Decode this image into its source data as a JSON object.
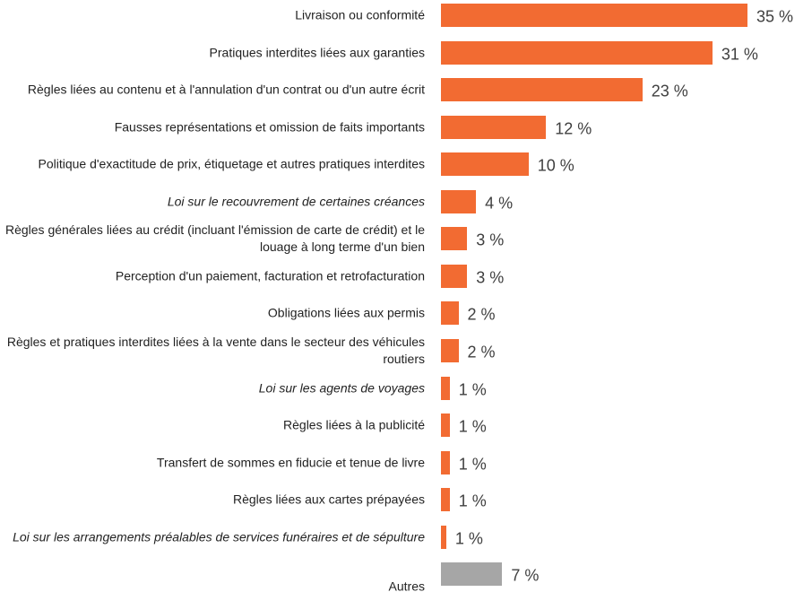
{
  "chart_data": {
    "type": "bar",
    "orientation": "horizontal",
    "categories": [
      "Livraison ou conformité",
      "Pratiques interdites liées aux garanties",
      "Règles liées au contenu et à l'annulation d'un contrat ou d'un autre écrit",
      "Fausses représentations et omission de faits importants",
      "Politique d'exactitude de prix, étiquetage et autres pratiques interdites",
      "Loi sur le recouvrement de certaines créances",
      "Règles générales liées au crédit (incluant l'émission de carte de crédit) et le louage à long terme d'un bien",
      "Perception d'un paiement, facturation et retrofacturation",
      "Obligations liées aux permis",
      "Règles et pratiques interdites liées à la vente dans le secteur des véhicules routiers",
      "Loi sur les agents de voyages",
      "Règles liées à la publicité",
      "Transfert de sommes en fiducie et tenue de livre",
      "Règles liées aux cartes prépayées",
      "Loi sur les arrangements préalables de services funéraires et de sépulture",
      "Autres"
    ],
    "values": [
      35,
      31,
      23,
      12,
      10,
      4,
      3,
      3,
      2,
      2,
      1,
      1,
      1,
      1,
      0.6,
      7
    ],
    "value_labels": [
      "35 %",
      "31 %",
      "23 %",
      "12 %",
      "10 %",
      "4 %",
      "3 %",
      "3 %",
      "2 %",
      "2 %",
      "1 %",
      "1 %",
      "1 %",
      "1 %",
      "1 %",
      "7 %"
    ],
    "colors": [
      "#f26b32",
      "#f26b32",
      "#f26b32",
      "#f26b32",
      "#f26b32",
      "#f26b32",
      "#f26b32",
      "#f26b32",
      "#f26b32",
      "#f26b32",
      "#f26b32",
      "#f26b32",
      "#f26b32",
      "#f26b32",
      "#f26b32",
      "#a6a6a6"
    ],
    "italic": [
      false,
      false,
      false,
      false,
      false,
      true,
      false,
      false,
      false,
      false,
      true,
      false,
      false,
      false,
      true,
      false
    ]
  }
}
